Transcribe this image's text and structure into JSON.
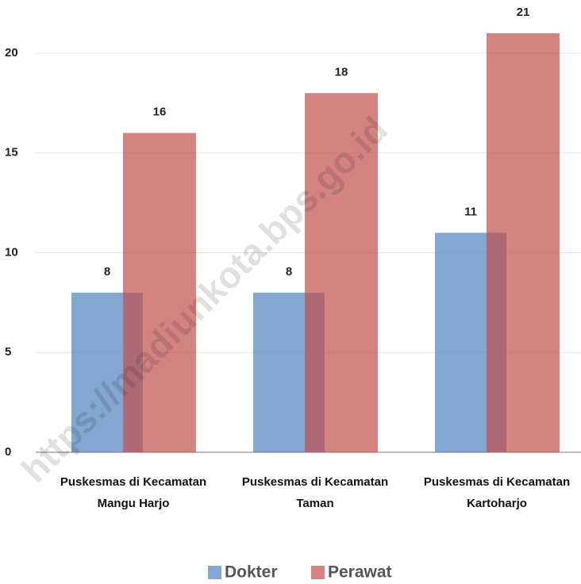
{
  "chart_data": {
    "type": "bar",
    "categories": [
      "Puskesmas di Kecamatan Mangu Harjo",
      "Puskesmas di Kecamatan Taman",
      "Puskesmas di Kecamatan Kartoharjo"
    ],
    "series": [
      {
        "name": "Dokter",
        "color": "#4f81bd",
        "values": [
          8,
          8,
          11
        ]
      },
      {
        "name": "Perawat",
        "color": "#c0504d",
        "values": [
          16,
          18,
          21
        ]
      }
    ],
    "ylim": [
      0,
      20
    ],
    "yticks": [
      0,
      5,
      10,
      15,
      20
    ],
    "grid": true,
    "legend": "bottom",
    "watermark": "https://madiunkota.bps.go.id"
  }
}
